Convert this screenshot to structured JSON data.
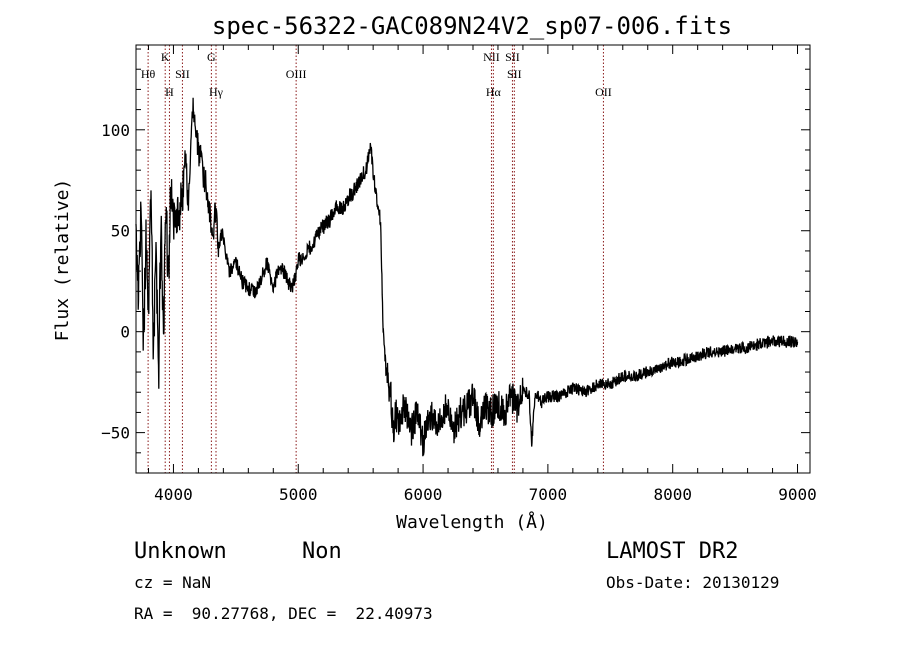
{
  "chart_data": {
    "type": "line",
    "title": "spec-56322-GAC089N24V2_sp07-006.fits",
    "xlabel": "Wavelength (Å)",
    "ylabel": "Flux (relative)",
    "xlim": [
      3700,
      9100
    ],
    "ylim": [
      -70,
      142
    ],
    "x_ticks": [
      4000,
      5000,
      6000,
      7000,
      8000,
      9000
    ],
    "y_ticks": [
      -50,
      0,
      50,
      100
    ],
    "x_tick_labels": [
      "4000",
      "5000",
      "6000",
      "7000",
      "8000",
      "9000"
    ],
    "y_tick_labels": [
      "−50",
      "0",
      "50",
      "100"
    ],
    "line_color": "#000000",
    "marker_color": "#8b1a1a",
    "lines": [
      {
        "wavelength": 3797,
        "label": "Hθ",
        "row": 1
      },
      {
        "wavelength": 3934,
        "label": "K",
        "row": 0
      },
      {
        "wavelength": 3968,
        "label": "H",
        "row": 2
      },
      {
        "wavelength": 4072,
        "label": "SII",
        "row": 1
      },
      {
        "wavelength": 4304,
        "label": "G",
        "row": 0
      },
      {
        "wavelength": 4341,
        "label": "Hγ",
        "row": 2
      },
      {
        "wavelength": 4983,
        "label": "OIII",
        "row": 1
      },
      {
        "wavelength": 6548,
        "label": "NII",
        "row": 0
      },
      {
        "wavelength": 6563,
        "label": "Hα",
        "row": 2
      },
      {
        "wavelength": 6716,
        "label": "SII",
        "row": 0
      },
      {
        "wavelength": 6731,
        "label": "SII",
        "row": 1
      },
      {
        "wavelength": 7445,
        "label": "OII",
        "row": 2
      }
    ],
    "series": [
      {
        "x": [
          3700,
          3720,
          3740,
          3760,
          3780,
          3800,
          3820,
          3840,
          3860,
          3880,
          3900,
          3920,
          3940,
          3960,
          3980,
          4000,
          4020,
          4040,
          4060,
          4080,
          4100,
          4120,
          4140,
          4160,
          4180,
          4200,
          4220,
          4240,
          4260,
          4280,
          4300,
          4320,
          4340,
          4360,
          4380,
          4400,
          4450,
          4500,
          4550,
          4600,
          4650,
          4700,
          4750,
          4800,
          4850,
          4900,
          4950,
          5000,
          5050,
          5100,
          5150,
          5200,
          5250,
          5300,
          5350,
          5400,
          5450,
          5500,
          5550,
          5580,
          5600,
          5620,
          5640,
          5660,
          5680,
          5700,
          5720,
          5740,
          5760,
          5780,
          5800,
          5850,
          5900,
          5950,
          6000,
          6050,
          6100,
          6150,
          6200,
          6250,
          6300,
          6350,
          6400,
          6450,
          6500,
          6550,
          6600,
          6650,
          6700,
          6750,
          6800,
          6850,
          6870,
          6900,
          6950,
          7000,
          7100,
          7200,
          7300,
          7400,
          7500,
          7600,
          7700,
          7800,
          7900,
          8000,
          8100,
          8200,
          8300,
          8400,
          8500,
          8600,
          8700,
          8800,
          8900,
          9000
        ],
        "y": [
          55,
          20,
          62,
          -5,
          45,
          10,
          68,
          -10,
          40,
          -25,
          55,
          0,
          65,
          25,
          75,
          48,
          62,
          55,
          68,
          72,
          82,
          62,
          92,
          115,
          98,
          90,
          85,
          76,
          75,
          62,
          55,
          50,
          62,
          40,
          48,
          45,
          30,
          35,
          25,
          22,
          20,
          26,
          34,
          22,
          32,
          28,
          20,
          35,
          38,
          42,
          48,
          52,
          55,
          62,
          60,
          66,
          70,
          75,
          82,
          92,
          80,
          68,
          62,
          55,
          0,
          -15,
          -25,
          -30,
          -50,
          -40,
          -45,
          -35,
          -50,
          -40,
          -55,
          -40,
          -45,
          -42,
          -35,
          -48,
          -40,
          -38,
          -32,
          -45,
          -38,
          -40,
          -35,
          -42,
          -30,
          -38,
          -28,
          -32,
          -55,
          -30,
          -35,
          -32,
          -32,
          -28,
          -30,
          -26,
          -26,
          -22,
          -22,
          -20,
          -18,
          -15,
          -14,
          -12,
          -10,
          -10,
          -8,
          -8,
          -6,
          -5,
          -5,
          -5
        ]
      }
    ]
  },
  "footer": {
    "object_class": "Unknown",
    "subclass": "Non",
    "survey": "LAMOST DR2",
    "cz": "cz = NaN",
    "obs_date": "Obs-Date: 20130129",
    "coords": "RA =  90.27768, DEC =  22.40973"
  }
}
